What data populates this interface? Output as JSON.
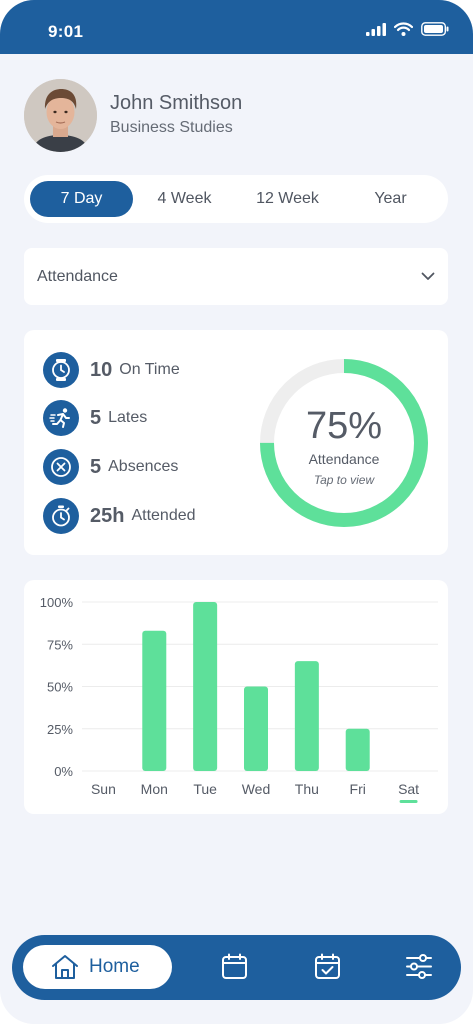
{
  "status_bar": {
    "time": "9:01"
  },
  "profile": {
    "name": "John Smithson",
    "department": "Business Studies"
  },
  "range_tabs": [
    {
      "label": "7 Day",
      "active": true
    },
    {
      "label": "4 Week",
      "active": false
    },
    {
      "label": "12 Week",
      "active": false
    },
    {
      "label": "Year",
      "active": false
    }
  ],
  "dropdown": {
    "selected": "Attendance"
  },
  "stats": [
    {
      "icon": "clock-icon",
      "value": "10",
      "label": "On Time"
    },
    {
      "icon": "running-person-icon",
      "value": "5",
      "label": "Lates"
    },
    {
      "icon": "cancel-circle-icon",
      "value": "5",
      "label": "Absences"
    },
    {
      "icon": "stopwatch-icon",
      "value": "25h",
      "label": "Attended"
    }
  ],
  "attendance_ring": {
    "percent_label": "75%",
    "percent": 75,
    "label": "Attendance",
    "hint": "Tap to view"
  },
  "chart_data": {
    "type": "bar",
    "categories": [
      "Sun",
      "Mon",
      "Tue",
      "Wed",
      "Thu",
      "Fri",
      "Sat"
    ],
    "values": [
      0,
      83,
      100,
      50,
      65,
      25,
      0
    ],
    "ytick_labels": [
      "100%",
      "75%",
      "50%",
      "25%",
      "0%"
    ],
    "ylim": [
      0,
      100
    ],
    "grid": true,
    "highlighted_category": "Sat"
  },
  "bottom_nav": {
    "home_label": "Home"
  },
  "colors": {
    "primary": "#1e5f9e",
    "accent": "#5ee09a",
    "ring_track": "#eeeeee",
    "background": "#f2f4fa"
  }
}
